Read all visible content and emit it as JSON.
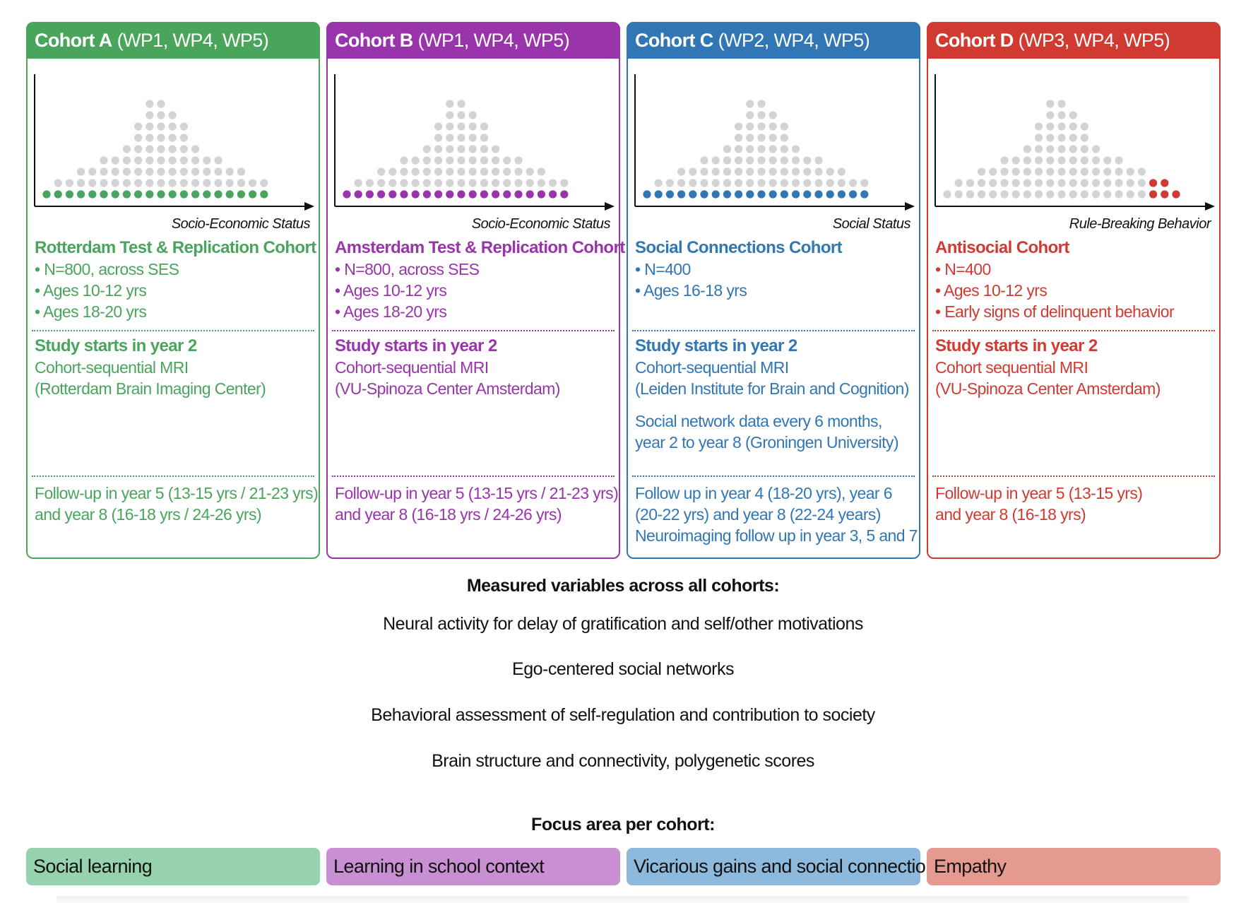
{
  "cohorts": [
    {
      "name": "Cohort A",
      "wp": "(WP1, WP4, WP5)",
      "color": "#4aa55c",
      "axis_label": "Socio-Economic Status",
      "title": "Rotterdam Test & Replication Cohort",
      "bullets": [
        "• N=800, across SES",
        "• Ages 10-12 yrs",
        "• Ages 18-20 yrs"
      ],
      "study_title": "Study starts in year 2",
      "study_lines": [
        "Cohort-sequential MRI",
        "(Rotterdam Brain Imaging Center)"
      ],
      "extra_lines": [],
      "followup": [
        "Follow-up in year 5 (13-15 yrs / 21-23 yrs)",
        "and year 8 (16-18 yrs / 24-26 yrs)"
      ],
      "highlight": "bottom"
    },
    {
      "name": "Cohort B",
      "wp": "(WP1, WP4, WP5)",
      "color": "#9a34ac",
      "axis_label": "Socio-Economic Status",
      "title": "Amsterdam Test & Replication Cohort",
      "bullets": [
        "• N=800, across SES",
        "• Ages 10-12 yrs",
        "• Ages 18-20 yrs"
      ],
      "study_title": "Study starts in year 2",
      "study_lines": [
        "Cohort-sequential MRI",
        "(VU-Spinoza Center Amsterdam)"
      ],
      "extra_lines": [],
      "followup": [
        "Follow-up in year 5 (13-15 yrs / 21-23 yrs)",
        "and year 8 (16-18 yrs / 24-26 yrs)"
      ],
      "highlight": "bottom"
    },
    {
      "name": "Cohort C",
      "wp": "(WP2, WP4, WP5)",
      "color": "#3176b5",
      "axis_label": "Social Status",
      "title": "Social Connections Cohort",
      "bullets": [
        "• N=400",
        "• Ages 16-18 yrs"
      ],
      "study_title": "Study starts in year 2",
      "study_lines": [
        "Cohort-sequential MRI",
        "(Leiden Institute for Brain and Cognition)"
      ],
      "extra_lines": [
        "Social network data every 6 months,",
        "year 2 to year 8 (Groningen University)"
      ],
      "followup": [
        "Follow up in year 4 (18-20 yrs), year 6",
        "(20-22 yrs) and year 8 (22-24 years)",
        "Neuroimaging follow up in year 3, 5 and 7"
      ],
      "highlight": "bottom"
    },
    {
      "name": "Cohort D",
      "wp": "(WP3, WP4, WP5)",
      "color": "#d13a30",
      "axis_label": "Rule-Breaking Behavior",
      "title": "Antisocial Cohort",
      "bullets": [
        "• N=400",
        "• Ages 10-12 yrs",
        "• Early signs of delinquent behavior"
      ],
      "study_title": "Study starts in year 2",
      "study_lines": [
        "Cohort sequential MRI",
        "(VU-Spinoza Center Amsterdam)"
      ],
      "extra_lines": [],
      "followup": [
        "Follow-up in year 5 (13-15 yrs)",
        "and year 8 (16-18 yrs)"
      ],
      "highlight": "tail"
    }
  ],
  "distribution_column_heights": [
    1,
    2,
    2,
    3,
    3,
    4,
    4,
    5,
    7,
    9,
    9,
    8,
    7,
    5,
    4,
    4,
    3,
    3,
    2,
    2,
    1
  ],
  "dot_gray": "#d3d3d3",
  "measured": {
    "title": "Measured variables across all cohorts:",
    "items": [
      "Neural activity for delay of gratification and self/other motivations",
      "Ego-centered social networks",
      "Behavioral assessment of self-regulation and contribution to society",
      "Brain structure and connectivity, polygenetic scores"
    ]
  },
  "focus": {
    "title": "Focus area per cohort:",
    "items": [
      {
        "label": "Social learning",
        "color": "#95d2ad"
      },
      {
        "label": "Learning in school context",
        "color": "#c88fd2"
      },
      {
        "label": "Vicarious gains and social connection",
        "color": "#8db9dc"
      },
      {
        "label": "Empathy",
        "color": "#e59a90"
      }
    ]
  }
}
